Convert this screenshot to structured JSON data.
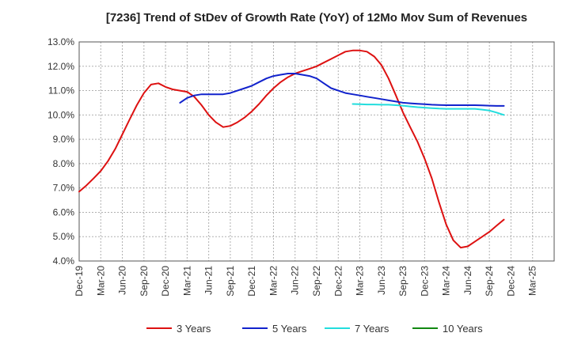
{
  "chart_data": {
    "type": "line",
    "title": "[7236]  Trend of StDev of Growth Rate (YoY) of 12Mo Mov Sum of Revenues",
    "xlabel": "",
    "ylabel": "",
    "ylim": [
      4.0,
      13.0
    ],
    "yticks": [
      4.0,
      5.0,
      6.0,
      7.0,
      8.0,
      9.0,
      10.0,
      11.0,
      12.0,
      13.0
    ],
    "ytick_labels": [
      "4.0%",
      "5.0%",
      "6.0%",
      "7.0%",
      "8.0%",
      "9.0%",
      "10.0%",
      "11.0%",
      "12.0%",
      "13.0%"
    ],
    "xlim": [
      0,
      22
    ],
    "xtick_labels": [
      "Dec-19",
      "Mar-20",
      "Jun-20",
      "Sep-20",
      "Dec-20",
      "Mar-21",
      "Jun-21",
      "Sep-21",
      "Dec-21",
      "Mar-22",
      "Jun-22",
      "Sep-22",
      "Dec-22",
      "Mar-23",
      "Jun-23",
      "Sep-23",
      "Dec-23",
      "Mar-24",
      "Jun-24",
      "Sep-24",
      "Dec-24",
      "Mar-25"
    ],
    "grid": true,
    "legend_position": "bottom",
    "series": [
      {
        "name": "3 Years",
        "color": "#dd1111",
        "x": [
          0,
          0.33,
          0.67,
          1,
          1.33,
          1.67,
          2,
          2.33,
          2.67,
          3,
          3.33,
          3.67,
          4,
          4.33,
          4.67,
          5,
          5.33,
          5.67,
          6,
          6.33,
          6.67,
          7,
          7.33,
          7.67,
          8,
          8.33,
          8.67,
          9,
          9.33,
          9.67,
          10,
          10.33,
          10.67,
          11,
          11.33,
          11.67,
          12,
          12.33,
          12.67,
          13,
          13.33,
          13.67,
          14,
          14.33,
          14.67,
          15,
          15.33,
          15.67,
          16,
          16.33,
          16.67,
          17,
          17.33,
          17.67,
          18,
          18.33,
          18.67,
          19,
          19.33,
          19.67,
          20
        ],
        "values": [
          6.85,
          7.1,
          7.4,
          7.7,
          8.1,
          8.6,
          9.2,
          9.8,
          10.4,
          10.9,
          11.25,
          11.3,
          11.15,
          11.05,
          11.0,
          10.95,
          10.75,
          10.4,
          10.0,
          9.7,
          9.5,
          9.55,
          9.7,
          9.9,
          10.15,
          10.45,
          10.8,
          11.1,
          11.35,
          11.55,
          11.7,
          11.8,
          11.9,
          12.0,
          12.15,
          12.3,
          12.45,
          12.6,
          12.65,
          12.65,
          12.6,
          12.4,
          12.05,
          11.5,
          10.8,
          10.1,
          9.5,
          8.9,
          8.2,
          7.4,
          6.4,
          5.5,
          4.85,
          4.55,
          4.6,
          4.8,
          5.0,
          5.2,
          5.45,
          5.7,
          null
        ]
      },
      {
        "name": "5 Years",
        "color": "#1122cc",
        "x": [
          4.67,
          5,
          5.33,
          5.67,
          6,
          6.33,
          6.67,
          7,
          7.33,
          7.67,
          8,
          8.33,
          8.67,
          9,
          9.33,
          9.67,
          10,
          10.33,
          10.67,
          11,
          11.33,
          11.67,
          12,
          12.33,
          12.67,
          13,
          13.33,
          13.67,
          14,
          14.33,
          14.67,
          15,
          15.33,
          15.67,
          16,
          16.33,
          16.67,
          17,
          17.33,
          17.67,
          18,
          18.33,
          18.67,
          19,
          19.33,
          19.67,
          20
        ],
        "values": [
          10.5,
          10.7,
          10.8,
          10.85,
          10.85,
          10.85,
          10.85,
          10.9,
          11.0,
          11.1,
          11.2,
          11.35,
          11.5,
          11.6,
          11.65,
          11.7,
          11.7,
          11.65,
          11.6,
          11.5,
          11.3,
          11.1,
          11.0,
          10.9,
          10.85,
          10.8,
          10.75,
          10.7,
          10.65,
          10.6,
          10.55,
          10.5,
          10.48,
          10.46,
          10.44,
          10.42,
          10.41,
          10.4,
          10.4,
          10.4,
          10.4,
          10.4,
          10.39,
          10.38,
          10.37,
          10.37,
          null
        ]
      },
      {
        "name": "7 Years",
        "color": "#22dddd",
        "x": [
          12.67,
          13,
          13.33,
          13.67,
          14,
          14.33,
          14.67,
          15,
          15.33,
          15.67,
          16,
          16.33,
          16.67,
          17,
          17.33,
          17.67,
          18,
          18.33,
          18.67,
          19,
          19.33,
          19.67,
          20
        ],
        "values": [
          10.45,
          10.44,
          10.43,
          10.43,
          10.42,
          10.42,
          10.4,
          10.38,
          10.35,
          10.32,
          10.3,
          10.28,
          10.26,
          10.25,
          10.25,
          10.25,
          10.25,
          10.25,
          10.22,
          10.18,
          10.1,
          10.0,
          null
        ]
      },
      {
        "name": "10 Years",
        "color": "#118811",
        "x": [],
        "values": []
      }
    ]
  }
}
